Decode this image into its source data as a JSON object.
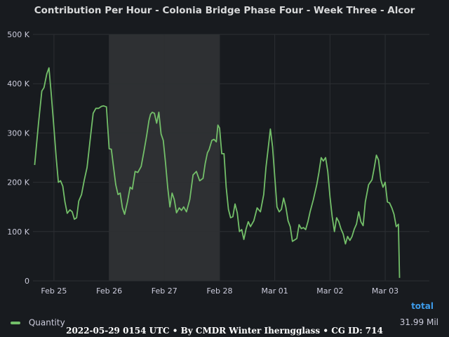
{
  "colors": {
    "series": "#73bf69",
    "legend_header": "#3d9be9",
    "band": "#2e3033",
    "grid": "#2c2f33"
  },
  "footer_text": "2022-05-29 0154 UTC • By CMDR Winter Iherngglass • CG ID: 714",
  "chart_data": {
    "type": "line",
    "title": "Contribution Per Hour - Colonia Bridge Phase Four - Week Three - Alcor",
    "xlabel": "",
    "ylabel": "",
    "x_unit": "days since Feb 24 00:00",
    "xlim": [
      0.62,
      7.8
    ],
    "ylim": [
      0,
      500000
    ],
    "y_ticks": [
      {
        "value": 0,
        "label": "0"
      },
      {
        "value": 100000,
        "label": "100 K"
      },
      {
        "value": 200000,
        "label": "200 K"
      },
      {
        "value": 300000,
        "label": "300 K"
      },
      {
        "value": 400000,
        "label": "400 K"
      },
      {
        "value": 500000,
        "label": "500 K"
      }
    ],
    "x_ticks": [
      {
        "value": 1,
        "label": "Feb 25"
      },
      {
        "value": 2,
        "label": "Feb 26"
      },
      {
        "value": 3,
        "label": "Feb 27"
      },
      {
        "value": 4,
        "label": "Feb 28"
      },
      {
        "value": 5,
        "label": "Mar 01"
      },
      {
        "value": 6,
        "label": "Mar 02"
      },
      {
        "value": 7,
        "label": "Mar 03"
      }
    ],
    "shaded_band": [
      2,
      4
    ],
    "grid": true,
    "legend_position": "bottom",
    "legend_header": "total",
    "series": [
      {
        "name": "Quantity",
        "total": "31.99 Mil",
        "x": [
          0.65,
          0.72,
          0.78,
          0.82,
          0.87,
          0.91,
          0.95,
          1.0,
          1.04,
          1.08,
          1.12,
          1.16,
          1.2,
          1.24,
          1.29,
          1.33,
          1.37,
          1.41,
          1.45,
          1.5,
          1.55,
          1.6,
          1.66,
          1.71,
          1.76,
          1.81,
          1.86,
          1.9,
          1.95,
          2.0,
          2.04,
          2.08,
          2.12,
          2.16,
          2.2,
          2.24,
          2.28,
          2.33,
          2.38,
          2.42,
          2.47,
          2.52,
          2.58,
          2.63,
          2.68,
          2.72,
          2.75,
          2.78,
          2.82,
          2.86,
          2.9,
          2.94,
          2.98,
          3.02,
          3.06,
          3.1,
          3.14,
          3.18,
          3.22,
          3.27,
          3.31,
          3.35,
          3.4,
          3.46,
          3.52,
          3.58,
          3.64,
          3.7,
          3.74,
          3.78,
          3.81,
          3.86,
          3.9,
          3.94,
          3.97,
          4.0,
          4.04,
          4.08,
          4.12,
          4.16,
          4.2,
          4.24,
          4.28,
          4.32,
          4.36,
          4.4,
          4.44,
          4.48,
          4.52,
          4.56,
          4.62,
          4.68,
          4.74,
          4.8,
          4.84,
          4.88,
          4.92,
          4.96,
          5.0,
          5.04,
          5.08,
          5.12,
          5.16,
          5.2,
          5.24,
          5.28,
          5.32,
          5.36,
          5.4,
          5.44,
          5.48,
          5.52,
          5.56,
          5.6,
          5.64,
          5.7,
          5.76,
          5.8,
          5.84,
          5.88,
          5.92,
          5.96,
          6.0,
          6.04,
          6.08,
          6.12,
          6.16,
          6.2,
          6.24,
          6.28,
          6.32,
          6.36,
          6.4,
          6.44,
          6.48,
          6.52,
          6.56,
          6.6,
          6.64,
          6.7,
          6.76,
          6.8,
          6.84,
          6.88,
          6.92,
          6.96,
          7.0,
          7.04,
          7.08,
          7.12,
          7.16,
          7.2,
          7.24,
          7.26
        ],
        "values": [
          235000,
          320000,
          385000,
          392000,
          420000,
          432000,
          380000,
          310000,
          250000,
          200000,
          203000,
          192000,
          160000,
          137000,
          144000,
          140000,
          125000,
          128000,
          162000,
          175000,
          205000,
          230000,
          290000,
          340000,
          350000,
          350000,
          354000,
          355000,
          353000,
          268000,
          267000,
          230000,
          195000,
          175000,
          178000,
          148000,
          135000,
          160000,
          190000,
          186000,
          222000,
          220000,
          232000,
          263000,
          295000,
          325000,
          338000,
          342000,
          340000,
          320000,
          342000,
          298000,
          285000,
          240000,
          190000,
          150000,
          178000,
          165000,
          138000,
          148000,
          143000,
          150000,
          140000,
          165000,
          215000,
          222000,
          203000,
          208000,
          238000,
          260000,
          266000,
          285000,
          287000,
          282000,
          316000,
          310000,
          258000,
          258000,
          190000,
          145000,
          128000,
          130000,
          156000,
          138000,
          100000,
          104000,
          84000,
          105000,
          120000,
          110000,
          122000,
          148000,
          140000,
          175000,
          230000,
          268000,
          308000,
          272000,
          210000,
          150000,
          140000,
          145000,
          168000,
          150000,
          122000,
          110000,
          80000,
          83000,
          86000,
          114000,
          106000,
          108000,
          104000,
          120000,
          140000,
          165000,
          195000,
          220000,
          250000,
          243000,
          250000,
          222000,
          170000,
          130000,
          100000,
          128000,
          120000,
          105000,
          95000,
          75000,
          90000,
          82000,
          90000,
          105000,
          115000,
          140000,
          120000,
          112000,
          160000,
          195000,
          205000,
          228000,
          255000,
          245000,
          205000,
          190000,
          200000,
          160000,
          158000,
          148000,
          135000,
          110000,
          115000,
          6000
        ]
      }
    ]
  }
}
